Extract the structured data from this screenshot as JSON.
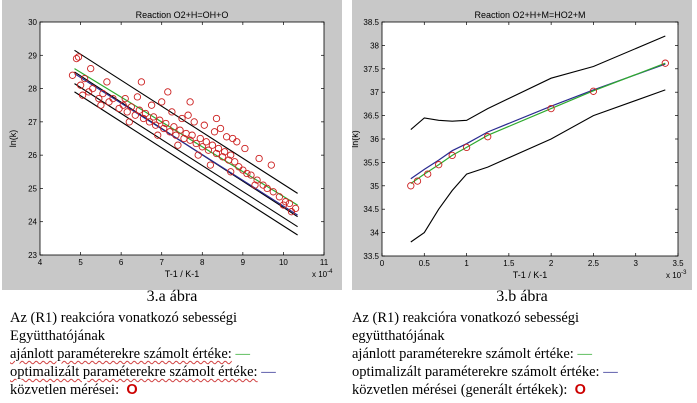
{
  "chart_data": [
    {
      "type": "scatter",
      "title": "Reaction O2+H=OH+O",
      "xlabel": "T-1 / K-1",
      "ylabel": "ln(k)",
      "x_multiplier": "x 10",
      "x_multiplier_exp": "-4",
      "xlim": [
        4,
        11
      ],
      "ylim": [
        23,
        30
      ],
      "xticks": [
        4,
        5,
        6,
        7,
        8,
        9,
        10,
        11
      ],
      "yticks": [
        23,
        24,
        25,
        26,
        27,
        28,
        29,
        30
      ],
      "xtick_labels": [
        "4",
        "5",
        "6",
        "7",
        "8",
        "9",
        "10",
        "11"
      ],
      "ytick_labels": [
        "23",
        "24",
        "25",
        "26",
        "27",
        "28",
        "29",
        "30"
      ],
      "grid": false,
      "series": [
        {
          "color": "#000000",
          "kind": "line",
          "x": [
            4.85,
            10.35
          ],
          "y": [
            29.15,
            24.85
          ]
        },
        {
          "color": "#000000",
          "kind": "line",
          "x": [
            4.85,
            10.35
          ],
          "y": [
            28.5,
            24.15
          ]
        },
        {
          "color": "#000000",
          "kind": "line",
          "x": [
            4.85,
            10.35
          ],
          "y": [
            28.15,
            23.85
          ]
        },
        {
          "color": "#000000",
          "kind": "line",
          "x": [
            4.85,
            10.35
          ],
          "y": [
            27.9,
            23.6
          ]
        },
        {
          "color": "#2eaa2e",
          "kind": "line",
          "x": [
            4.85,
            10.35
          ],
          "y": [
            28.6,
            24.5
          ]
        },
        {
          "color": "#2a2a90",
          "kind": "line",
          "x": [
            4.85,
            10.35
          ],
          "y": [
            28.45,
            24.2
          ]
        },
        {
          "color": "#cc2020",
          "kind": "markers",
          "x": [
            4.8,
            4.9,
            5.0,
            5.1,
            5.2,
            5.3,
            5.45,
            5.55,
            5.7,
            5.8,
            5.95,
            6.05,
            6.15,
            6.25,
            6.35,
            6.45,
            6.55,
            6.6,
            6.7,
            6.8,
            6.85,
            6.95,
            7.05,
            7.1,
            7.2,
            7.3,
            7.35,
            7.45,
            7.55,
            7.6,
            7.7,
            7.75,
            7.85,
            7.95,
            8.0,
            8.1,
            8.15,
            8.25,
            8.35,
            8.4,
            8.5,
            8.55,
            8.65,
            8.7,
            8.8,
            8.9,
            9.0,
            9.1,
            9.2,
            9.35,
            9.5,
            9.6,
            9.75,
            9.9,
            10.05,
            10.15,
            10.3,
            4.95,
            5.25,
            5.65,
            6.1,
            6.4,
            6.75,
            7.0,
            7.25,
            7.5,
            7.65,
            7.8,
            8.05,
            8.3,
            8.45,
            8.6,
            8.75,
            9.05,
            9.4,
            9.7,
            10.2,
            5.05,
            5.5,
            6.2,
            6.9,
            7.4,
            7.9,
            8.2,
            8.7,
            9.3,
            10.0,
            6.5,
            7.15,
            7.7,
            8.35,
            8.85
          ],
          "y": [
            28.4,
            28.9,
            28.1,
            28.3,
            27.9,
            28.0,
            27.7,
            27.85,
            27.6,
            27.7,
            27.4,
            27.5,
            27.3,
            27.45,
            27.2,
            27.35,
            27.1,
            27.25,
            27.0,
            27.15,
            26.9,
            27.05,
            26.8,
            26.95,
            26.7,
            26.85,
            26.6,
            26.75,
            26.5,
            26.65,
            26.45,
            26.6,
            26.35,
            26.5,
            26.25,
            26.4,
            26.15,
            26.3,
            26.05,
            26.2,
            25.95,
            26.1,
            25.85,
            26.0,
            25.8,
            25.65,
            25.55,
            25.45,
            25.4,
            25.25,
            25.1,
            25.0,
            24.9,
            24.75,
            24.6,
            24.55,
            24.4,
            28.95,
            28.6,
            28.2,
            27.7,
            27.75,
            27.5,
            27.6,
            27.3,
            27.1,
            27.2,
            27.0,
            26.9,
            26.7,
            26.8,
            26.55,
            26.5,
            26.2,
            25.9,
            25.7,
            24.3,
            27.8,
            27.5,
            27.0,
            26.6,
            26.3,
            26.0,
            25.7,
            25.5,
            25.1,
            24.5,
            28.2,
            27.9,
            27.6,
            27.1,
            26.4
          ]
        }
      ]
    },
    {
      "type": "line",
      "title": "Reaction O2+H+M=HO2+M",
      "xlabel": "T-1 / K-1",
      "ylabel": "ln(k)",
      "x_multiplier": "x 10",
      "x_multiplier_exp": "-3",
      "xlim": [
        0,
        3.5
      ],
      "ylim": [
        33.5,
        38.5
      ],
      "xticks": [
        0,
        0.5,
        1,
        1.5,
        2,
        2.5,
        3,
        3.5
      ],
      "yticks": [
        33.5,
        34,
        34.5,
        35,
        35.5,
        36,
        36.5,
        37,
        37.5,
        38,
        38.5
      ],
      "xtick_labels": [
        "0",
        "0.5",
        "1",
        "1.5",
        "2",
        "2.5",
        "3",
        "3.5"
      ],
      "ytick_labels": [
        "33.5",
        "34",
        "34.5",
        "35",
        "35.5",
        "36",
        "36.5",
        "37",
        "37.5",
        "38",
        "38.5"
      ],
      "grid": false,
      "series": [
        {
          "color": "#000000",
          "kind": "line",
          "x": [
            0.34,
            0.5,
            0.67,
            0.83,
            1.0,
            1.25,
            2.0,
            2.5,
            3.35
          ],
          "y": [
            36.2,
            36.45,
            36.4,
            36.38,
            36.4,
            36.65,
            37.3,
            37.55,
            38.2
          ]
        },
        {
          "color": "#000000",
          "kind": "line",
          "x": [
            0.34,
            0.5,
            0.67,
            0.83,
            1.0,
            1.25,
            2.0,
            2.5,
            3.35
          ],
          "y": [
            33.8,
            34.0,
            34.5,
            34.9,
            35.25,
            35.4,
            36.0,
            36.5,
            37.05
          ]
        },
        {
          "color": "#2a2a90",
          "kind": "line",
          "x": [
            0.34,
            0.5,
            0.67,
            0.83,
            1.0,
            1.25,
            2.0,
            2.5,
            3.35
          ],
          "y": [
            35.15,
            35.35,
            35.55,
            35.75,
            35.9,
            36.15,
            36.7,
            37.05,
            37.6
          ]
        },
        {
          "color": "#2eaa2e",
          "kind": "line",
          "x": [
            0.34,
            0.5,
            0.67,
            0.83,
            1.0,
            1.25,
            2.0,
            2.5,
            3.35
          ],
          "y": [
            35.05,
            35.25,
            35.45,
            35.65,
            35.82,
            36.08,
            36.65,
            37.03,
            37.62
          ]
        },
        {
          "color": "#cc2020",
          "kind": "markers",
          "x": [
            0.34,
            0.42,
            0.54,
            0.67,
            0.83,
            1.0,
            1.25,
            2.0,
            2.5,
            3.35
          ],
          "y": [
            35.0,
            35.1,
            35.25,
            35.45,
            35.65,
            35.82,
            36.05,
            36.65,
            37.02,
            37.62
          ]
        }
      ]
    }
  ],
  "captions": {
    "a": {
      "label": "3.a ábra",
      "line1": "Az (R1) reakcióra vonatkozó sebességi",
      "line2": "Együtthatójának",
      "line3_text": "ajánlott paraméterekre számolt értéke:",
      "line3_symbol": "—",
      "line4_text": "optimalizált paraméterekre számolt értéke:",
      "line4_symbol": "—",
      "line5_text": "közvetlen mérései:",
      "line5_symbol": "O"
    },
    "b": {
      "label": "3.b ábra",
      "line1": "Az (R1) reakcióra vonatkozó sebességi",
      "line2": "együtthatójának",
      "line3_text": "ajánlott paraméterekre számolt értéke:",
      "line3_symbol": "—",
      "line4_text": "optimalizált paraméterekre számolt értéke:",
      "line4_symbol": "—",
      "line5_text": "közvetlen mérései (generált értékek):",
      "line5_symbol": "O"
    }
  }
}
